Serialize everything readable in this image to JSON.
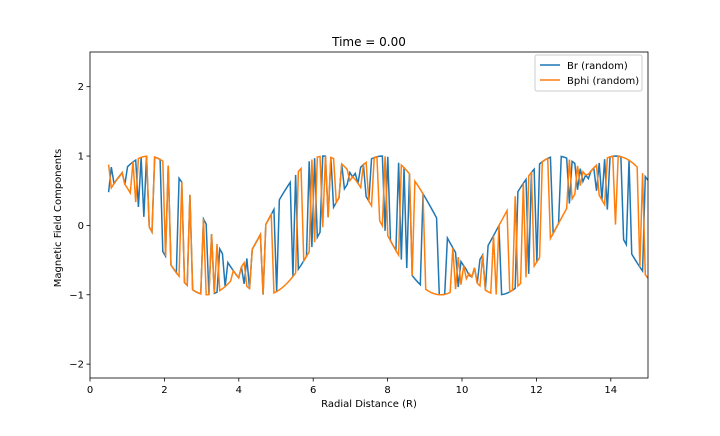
{
  "chart_data": {
    "type": "line",
    "title": "Time = 0.00",
    "xlabel": "Radial Distance (R)",
    "ylabel": "Magnetic Field Components",
    "xlim": [
      0,
      15
    ],
    "ylim": [
      -2.2,
      2.5
    ],
    "xticks": [
      0,
      2,
      4,
      6,
      8,
      10,
      12,
      14
    ],
    "yticks": [
      -2,
      -1,
      0,
      1,
      2
    ],
    "xtick_labels": [
      "0",
      "2",
      "4",
      "6",
      "8",
      "10",
      "12",
      "14"
    ],
    "ytick_labels": [
      "−2",
      "−1",
      "0",
      "1",
      "2"
    ],
    "grid": false,
    "legend_location": "top-right",
    "x_range": [
      0.5,
      15.0
    ],
    "samples": 200,
    "series": [
      {
        "name": "Br (random)",
        "color": "#1f77b4",
        "description": "Each sample randomly takes cos(x) or sin(x)",
        "envelope_a": "cos",
        "envelope_b": "sin"
      },
      {
        "name": "Bphi (random)",
        "color": "#ff7f0e",
        "description": "Each sample randomly takes sin(x) or cos(x)",
        "envelope_a": "sin",
        "envelope_b": "cos"
      }
    ]
  }
}
